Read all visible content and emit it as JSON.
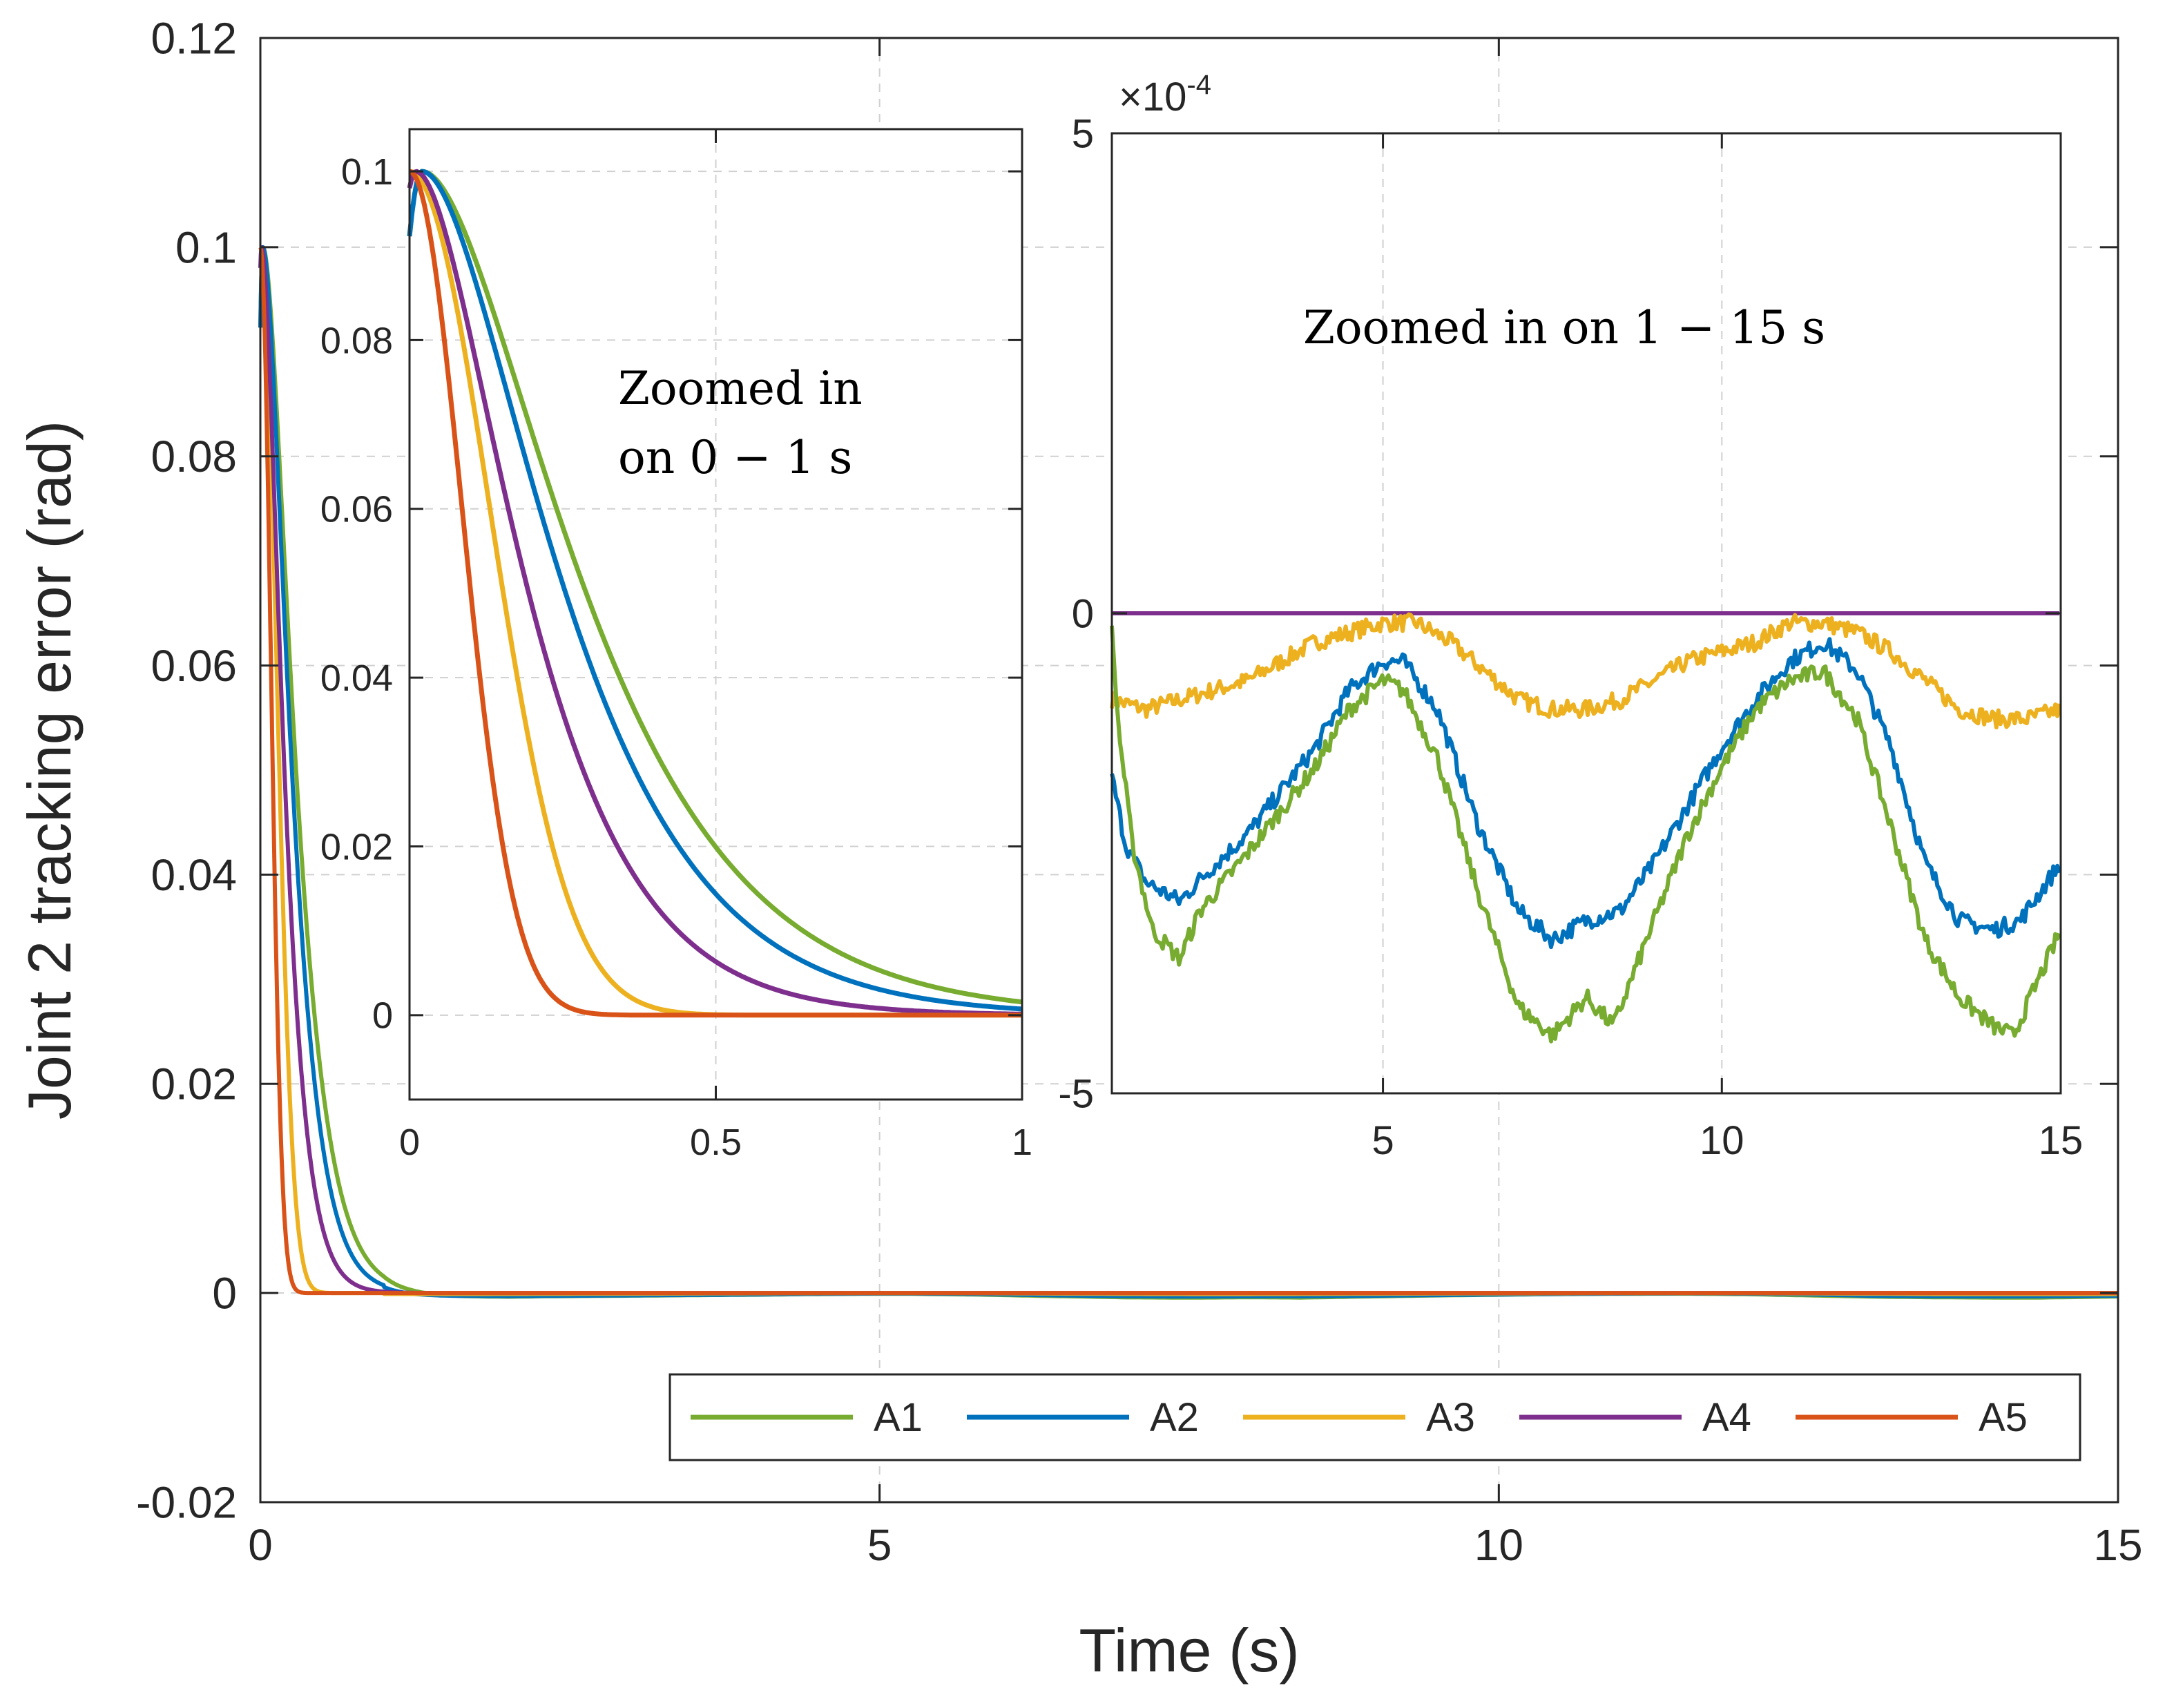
{
  "chart_data": [
    {
      "id": "main",
      "type": "line",
      "title": "",
      "xlabel": "Time (s)",
      "ylabel": "Joint 2 tracking error (rad)",
      "xlim": [
        0,
        15
      ],
      "ylim": [
        -0.02,
        0.12
      ],
      "xticks": [
        0,
        5,
        10,
        15
      ],
      "xtick_labels": [
        "0",
        "5",
        "10",
        "15"
      ],
      "yticks": [
        -0.02,
        0,
        0.02,
        0.04,
        0.06,
        0.08,
        0.1,
        0.12
      ],
      "ytick_labels": [
        "-0.02",
        "0",
        "0.02",
        "0.04",
        "0.06",
        "0.08",
        "0.1",
        "0.12"
      ],
      "grid": true,
      "legend_position": "bottom-right",
      "legend_orientation": "horizontal",
      "series": [
        {
          "name": "A1",
          "color": "#77AC30",
          "model": {
            "type": "decay",
            "amp": 0.1,
            "tp": 0.02,
            "tau": 0.16,
            "sigma": 0.05
          }
        },
        {
          "name": "A2",
          "color": "#0072BD",
          "model": {
            "type": "decay",
            "amp": 0.1,
            "tp": 0.02,
            "tau": 0.14,
            "sigma": 0.05
          }
        },
        {
          "name": "A3",
          "color": "#EDB120",
          "model": {
            "type": "gauss",
            "amp": 0.1,
            "tp": 0.0,
            "sigma": 0.13
          }
        },
        {
          "name": "A4",
          "color": "#7E2F8E",
          "model": {
            "type": "decay",
            "amp": 0.1,
            "tp": 0.01,
            "tau": 0.11,
            "sigma": 0.05
          }
        },
        {
          "name": "A5",
          "color": "#D95319",
          "model": {
            "type": "gauss",
            "amp": 0.1,
            "tp": 0.0,
            "sigma": 0.085
          }
        }
      ]
    },
    {
      "id": "inset-left",
      "type": "line",
      "annotation": [
        "Zoomed in",
        "on 0 − 1 s"
      ],
      "xlim": [
        0,
        1
      ],
      "ylim": [
        -0.01,
        0.105
      ],
      "xticks": [
        0,
        0.5,
        1
      ],
      "xtick_labels": [
        "0",
        "0.5",
        "1"
      ],
      "yticks": [
        0,
        0.02,
        0.04,
        0.06,
        0.08,
        0.1
      ],
      "ytick_labels": [
        "0",
        "0.02",
        "0.04",
        "0.06",
        "0.08",
        "0.1"
      ],
      "grid": true,
      "series_ref": [
        "A1",
        "A2",
        "A3",
        "A4",
        "A5"
      ]
    },
    {
      "id": "inset-right",
      "type": "line",
      "annotation": "Zoomed in on 1 − 15 s",
      "xlim": [
        1,
        15
      ],
      "ylim": [
        -0.0005,
        0.0005
      ],
      "y_exponent_label": "×10",
      "y_exponent_value": "-4",
      "xticks": [
        5,
        10,
        15
      ],
      "xtick_labels": [
        "5",
        "10",
        "15"
      ],
      "yticks": [
        -0.0005,
        0,
        0.0005
      ],
      "ytick_labels": [
        "-5",
        "0",
        "5"
      ],
      "grid": true,
      "series": [
        {
          "name": "A1",
          "color": "#77AC30",
          "x": [
            1.0,
            1.1,
            1.3,
            1.6,
            2.0,
            2.3,
            3.0,
            4.0,
            4.5,
            5.0,
            5.3,
            5.8,
            6.4,
            7.0,
            7.5,
            8.0,
            8.4,
            9.0,
            9.5,
            10.0,
            10.5,
            11.0,
            11.5,
            12.0,
            12.4,
            13.0,
            13.5,
            14.0,
            14.3,
            15.0
          ],
          "y": [
            -2e-05,
            -0.00012,
            -0.00024,
            -0.00033,
            -0.00036,
            -0.00031,
            -0.00025,
            -0.00016,
            -0.0001,
            -7e-05,
            -8e-05,
            -0.00015,
            -0.00029,
            -0.00041,
            -0.00044,
            -0.0004,
            -0.00043,
            -0.00032,
            -0.00023,
            -0.00016,
            -0.0001,
            -7e-05,
            -6e-05,
            -0.00011,
            -0.0002,
            -0.00034,
            -0.0004,
            -0.00043,
            -0.00044,
            -0.00033
          ]
        },
        {
          "name": "A2",
          "color": "#0072BD",
          "x": [
            1.0,
            1.2,
            1.5,
            2.0,
            2.4,
            3.0,
            4.0,
            4.5,
            5.0,
            5.3,
            5.8,
            6.4,
            7.0,
            7.5,
            8.0,
            8.5,
            9.0,
            9.5,
            10.0,
            10.5,
            11.0,
            11.5,
            12.0,
            12.5,
            13.0,
            13.5,
            14.0,
            14.4,
            15.0
          ],
          "y": [
            -0.00017,
            -0.00024,
            -0.00028,
            -0.0003,
            -0.00027,
            -0.00023,
            -0.00014,
            -8e-05,
            -5e-05,
            -5e-05,
            -0.0001,
            -0.00022,
            -0.00031,
            -0.00034,
            -0.00032,
            -0.00031,
            -0.00026,
            -0.0002,
            -0.00014,
            -9e-05,
            -5e-05,
            -3e-05,
            -6e-05,
            -0.00014,
            -0.00026,
            -0.00032,
            -0.00033,
            -0.00032,
            -0.00026
          ]
        },
        {
          "name": "A3",
          "color": "#EDB120",
          "x": [
            1.0,
            1.5,
            2.0,
            2.5,
            3.0,
            3.5,
            4.0,
            4.5,
            5.0,
            5.5,
            6.0,
            6.5,
            7.0,
            7.5,
            8.0,
            8.5,
            9.0,
            9.5,
            10.0,
            10.5,
            11.0,
            11.5,
            12.0,
            12.5,
            13.0,
            13.5,
            14.0,
            14.5,
            15.0
          ],
          "y": [
            -9e-05,
            -0.0001,
            -9e-05,
            -8e-05,
            -7e-05,
            -5e-05,
            -3e-05,
            -2e-05,
            -1e-05,
            -1e-05,
            -3e-05,
            -6e-05,
            -9e-05,
            -0.0001,
            -0.0001,
            -9e-05,
            -7e-05,
            -5e-05,
            -4e-05,
            -3e-05,
            -1e-05,
            -1e-05,
            -2e-05,
            -4e-05,
            -7e-05,
            -0.0001,
            -0.00011,
            -0.00011,
            -0.0001
          ]
        },
        {
          "name": "A4",
          "color": "#7E2F8E",
          "x": [
            1.0,
            15.0
          ],
          "y": [
            0.0,
            0.0
          ]
        },
        {
          "name": "A5",
          "color": "#D95319",
          "x": [
            1.0,
            15.0
          ],
          "y": [
            0.0,
            0.0
          ]
        }
      ]
    }
  ],
  "legend": {
    "items": [
      {
        "label": "A1",
        "color": "#77AC30"
      },
      {
        "label": "A2",
        "color": "#0072BD"
      },
      {
        "label": "A3",
        "color": "#EDB120"
      },
      {
        "label": "A4",
        "color": "#7E2F8E"
      },
      {
        "label": "A5",
        "color": "#D95319"
      }
    ]
  }
}
